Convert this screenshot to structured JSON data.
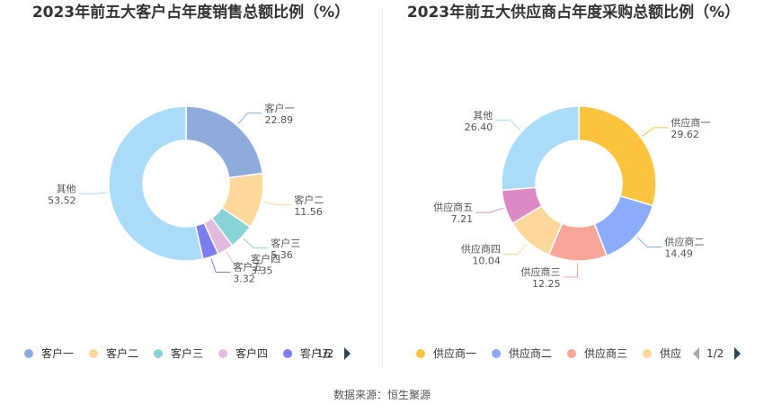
{
  "chart_data": [
    {
      "type": "pie",
      "title": "2023年前五大客户占年度销售总额比例（%）",
      "categories": [
        "客户一",
        "客户二",
        "客户三",
        "客户四",
        "客户五",
        "其他"
      ],
      "values": [
        22.89,
        11.56,
        5.36,
        3.35,
        3.32,
        53.52
      ],
      "value_labels": [
        "22.89",
        "11.56",
        "5.36",
        "3.35",
        "3.32",
        "53.52"
      ],
      "colors": [
        "#8eabdb",
        "#fed89a",
        "#87d3d6",
        "#e2bade",
        "#7c7ef0",
        "#aadcf9"
      ],
      "legend": {
        "items": [
          "客户一",
          "客户二",
          "客户三",
          "客户四",
          "客户五"
        ],
        "visible_count": 5,
        "page": "1/2",
        "position": "bottom"
      }
    },
    {
      "type": "pie",
      "title": "2023年前五大供应商占年度采购总额比例（%）",
      "categories": [
        "供应商一",
        "供应商二",
        "供应商三",
        "供应商四",
        "供应商五",
        "其他"
      ],
      "values": [
        29.62,
        14.49,
        12.25,
        10.04,
        7.21,
        26.4
      ],
      "value_labels": [
        "29.62",
        "14.49",
        "12.25",
        "10.04",
        "7.21",
        "26.40"
      ],
      "colors": [
        "#fcc43c",
        "#8babfb",
        "#f9a59a",
        "#fed89a",
        "#dc8ac5",
        "#aadcf9"
      ],
      "legend": {
        "items": [
          "供应商一",
          "供应商二",
          "供应商三",
          "供应"
        ],
        "visible_count": 4,
        "page": "1/2",
        "position": "bottom"
      }
    }
  ],
  "source": "数据来源：恒生聚源"
}
